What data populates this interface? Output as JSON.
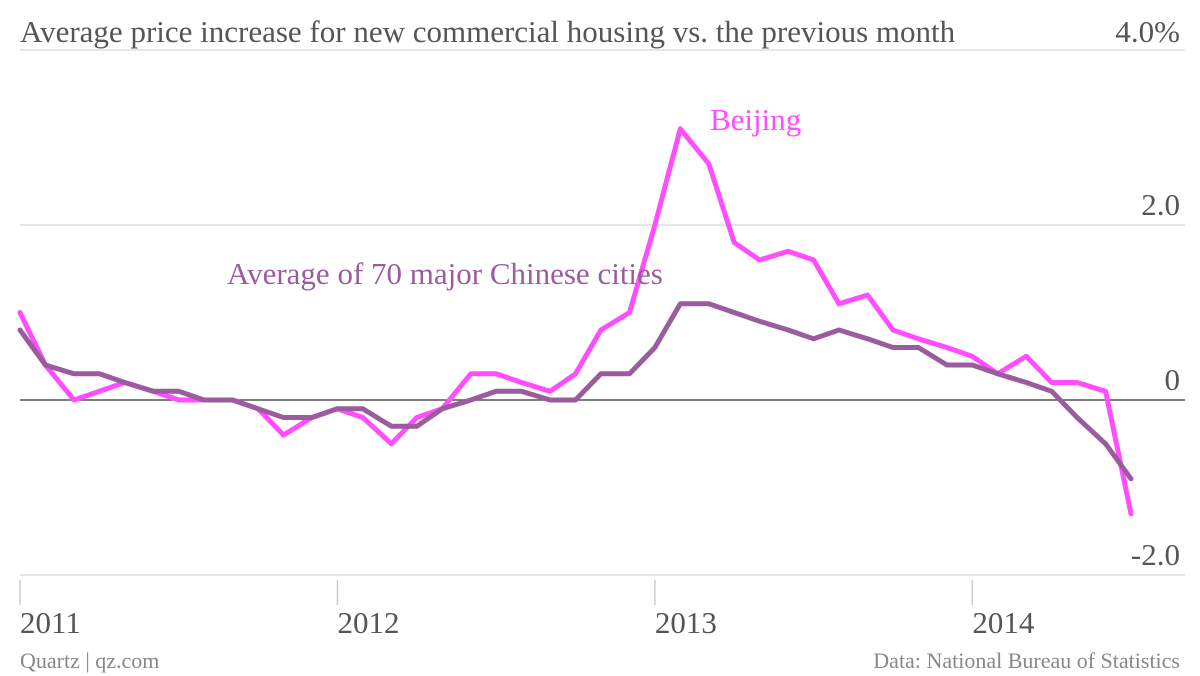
{
  "chart_data": {
    "type": "line",
    "title": "Average price increase for new commercial housing vs. the previous month",
    "source": "Data: National Bureau of Statistics",
    "credit": "Quartz | qz.com",
    "x": [
      2011,
      2011.08,
      2011.17,
      2011.25,
      2011.33,
      2011.42,
      2011.5,
      2011.58,
      2011.67,
      2011.75,
      2011.83,
      2011.92,
      2012,
      2012.08,
      2012.17,
      2012.25,
      2012.33,
      2012.42,
      2012.5,
      2012.58,
      2012.67,
      2012.75,
      2012.83,
      2012.92,
      2013,
      2013.08,
      2013.17,
      2013.25,
      2013.33,
      2013.42,
      2013.5,
      2013.58,
      2013.67,
      2013.75,
      2013.83,
      2013.92,
      2014,
      2014.08,
      2014.17,
      2014.25,
      2014.33,
      2014.42,
      2014.5
    ],
    "series": [
      {
        "name": "Beijing",
        "color": "#ff4dff",
        "values": [
          1.0,
          0.4,
          0.0,
          0.1,
          0.2,
          0.1,
          0.0,
          0.0,
          0.0,
          -0.1,
          -0.4,
          -0.2,
          -0.1,
          -0.2,
          -0.5,
          -0.2,
          -0.1,
          0.3,
          0.3,
          0.2,
          0.1,
          0.3,
          0.8,
          1.0,
          2.0,
          3.1,
          2.7,
          1.8,
          1.6,
          1.7,
          1.6,
          1.1,
          1.2,
          0.8,
          0.7,
          0.6,
          0.5,
          0.3,
          0.5,
          0.2,
          0.2,
          0.1,
          -1.3
        ]
      },
      {
        "name": "Average of 70 major Chinese cities",
        "color": "#9b5c9e",
        "values": [
          0.8,
          0.4,
          0.3,
          0.3,
          0.2,
          0.1,
          0.1,
          0.0,
          0.0,
          -0.1,
          -0.2,
          -0.2,
          -0.1,
          -0.1,
          -0.3,
          -0.3,
          -0.1,
          0.0,
          0.1,
          0.1,
          0.0,
          0.0,
          0.3,
          0.3,
          0.6,
          1.1,
          1.1,
          1.0,
          0.9,
          0.8,
          0.7,
          0.8,
          0.7,
          0.6,
          0.6,
          0.4,
          0.4,
          0.3,
          0.2,
          0.1,
          -0.2,
          -0.5,
          -0.9
        ]
      }
    ],
    "xlim": [
      2011,
      2014.67
    ],
    "xticks": [
      2011,
      2012,
      2013,
      2014
    ],
    "ylim": [
      -2,
      4
    ],
    "yticks": [
      {
        "value": -2,
        "label": "-2.0"
      },
      0,
      {
        "value": 2,
        "label": "2.0"
      },
      {
        "value": 4,
        "label": "4.0%"
      }
    ],
    "grid": true
  }
}
